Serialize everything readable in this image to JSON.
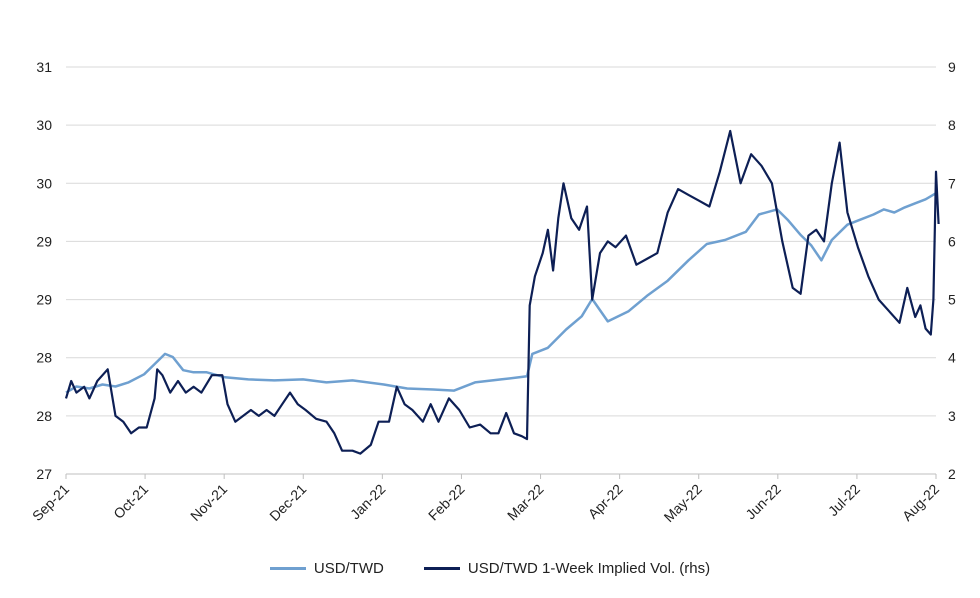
{
  "chart_data": {
    "type": "line",
    "title": "",
    "xlabel": "",
    "ylabel_left": "",
    "ylabel_right": "",
    "x_range": [
      "2021-09-01",
      "2022-08-01"
    ],
    "x_ticks": [
      "Sep-21",
      "Oct-21",
      "Nov-21",
      "Dec-21",
      "Jan-22",
      "Feb-22",
      "Mar-22",
      "Apr-22",
      "May-22",
      "Jun-22",
      "Jul-22",
      "Aug-22"
    ],
    "y_left": {
      "ticks": [
        "27",
        "28",
        "28",
        "29",
        "29",
        "30",
        "30",
        "31"
      ],
      "range": [
        27,
        31
      ]
    },
    "y_right": {
      "ticks": [
        "2",
        "3",
        "4",
        "5",
        "6",
        "7",
        "8",
        "9"
      ],
      "range": [
        2,
        9
      ]
    },
    "grid": true,
    "legend_position": "bottom",
    "series": [
      {
        "name": "USD/TWD",
        "axis": "left",
        "color": "#6fa0d0",
        "points": [
          [
            "2021-09-01",
            27.8
          ],
          [
            "2021-09-05",
            27.86
          ],
          [
            "2021-09-10",
            27.84
          ],
          [
            "2021-09-15",
            27.88
          ],
          [
            "2021-09-20",
            27.86
          ],
          [
            "2021-09-25",
            27.9
          ],
          [
            "2021-10-01",
            27.98
          ],
          [
            "2021-10-05",
            28.08
          ],
          [
            "2021-10-09",
            28.18
          ],
          [
            "2021-10-12",
            28.15
          ],
          [
            "2021-10-16",
            28.02
          ],
          [
            "2021-10-20",
            28.0
          ],
          [
            "2021-10-25",
            28.0
          ],
          [
            "2021-11-01",
            27.95
          ],
          [
            "2021-11-10",
            27.93
          ],
          [
            "2021-11-20",
            27.92
          ],
          [
            "2021-12-01",
            27.93
          ],
          [
            "2021-12-10",
            27.9
          ],
          [
            "2021-12-20",
            27.92
          ],
          [
            "2022-01-01",
            27.88
          ],
          [
            "2022-01-10",
            27.84
          ],
          [
            "2022-01-20",
            27.83
          ],
          [
            "2022-01-28",
            27.82
          ],
          [
            "2022-02-05",
            27.9
          ],
          [
            "2022-02-15",
            27.93
          ],
          [
            "2022-02-22",
            27.95
          ],
          [
            "2022-02-25",
            27.96
          ],
          [
            "2022-02-27",
            28.18
          ],
          [
            "2022-03-05",
            28.24
          ],
          [
            "2022-03-12",
            28.42
          ],
          [
            "2022-03-18",
            28.55
          ],
          [
            "2022-03-22",
            28.72
          ],
          [
            "2022-03-28",
            28.5
          ],
          [
            "2022-04-05",
            28.6
          ],
          [
            "2022-04-12",
            28.75
          ],
          [
            "2022-04-20",
            28.9
          ],
          [
            "2022-04-28",
            29.1
          ],
          [
            "2022-05-05",
            29.26
          ],
          [
            "2022-05-12",
            29.3
          ],
          [
            "2022-05-20",
            29.38
          ],
          [
            "2022-05-25",
            29.55
          ],
          [
            "2022-06-01",
            29.6
          ],
          [
            "2022-06-05",
            29.5
          ],
          [
            "2022-06-10",
            29.35
          ],
          [
            "2022-06-14",
            29.25
          ],
          [
            "2022-06-18",
            29.1
          ],
          [
            "2022-06-22",
            29.3
          ],
          [
            "2022-06-28",
            29.45
          ],
          [
            "2022-07-03",
            29.5
          ],
          [
            "2022-07-08",
            29.55
          ],
          [
            "2022-07-12",
            29.6
          ],
          [
            "2022-07-16",
            29.57
          ],
          [
            "2022-07-20",
            29.62
          ],
          [
            "2022-07-24",
            29.66
          ],
          [
            "2022-07-28",
            29.7
          ],
          [
            "2022-08-01",
            29.76
          ]
        ]
      },
      {
        "name": "USD/TWD 1-Week Implied Vol. (rhs)",
        "axis": "right",
        "color": "#0d1f55",
        "points": [
          [
            "2021-09-01",
            3.3
          ],
          [
            "2021-09-03",
            3.6
          ],
          [
            "2021-09-05",
            3.4
          ],
          [
            "2021-09-08",
            3.5
          ],
          [
            "2021-09-10",
            3.3
          ],
          [
            "2021-09-13",
            3.6
          ],
          [
            "2021-09-15",
            3.7
          ],
          [
            "2021-09-17",
            3.8
          ],
          [
            "2021-09-20",
            3.0
          ],
          [
            "2021-09-23",
            2.9
          ],
          [
            "2021-09-26",
            2.7
          ],
          [
            "2021-09-29",
            2.8
          ],
          [
            "2021-10-02",
            2.8
          ],
          [
            "2021-10-05",
            3.3
          ],
          [
            "2021-10-06",
            3.8
          ],
          [
            "2021-10-08",
            3.7
          ],
          [
            "2021-10-11",
            3.4
          ],
          [
            "2021-10-14",
            3.6
          ],
          [
            "2021-10-17",
            3.4
          ],
          [
            "2021-10-20",
            3.5
          ],
          [
            "2021-10-23",
            3.4
          ],
          [
            "2021-10-27",
            3.7
          ],
          [
            "2021-10-31",
            3.7
          ],
          [
            "2021-11-02",
            3.2
          ],
          [
            "2021-11-05",
            2.9
          ],
          [
            "2021-11-08",
            3.0
          ],
          [
            "2021-11-11",
            3.1
          ],
          [
            "2021-11-14",
            3.0
          ],
          [
            "2021-11-17",
            3.1
          ],
          [
            "2021-11-20",
            3.0
          ],
          [
            "2021-11-23",
            3.2
          ],
          [
            "2021-11-26",
            3.4
          ],
          [
            "2021-11-29",
            3.2
          ],
          [
            "2021-12-02",
            3.1
          ],
          [
            "2021-12-06",
            2.95
          ],
          [
            "2021-12-10",
            2.9
          ],
          [
            "2021-12-13",
            2.7
          ],
          [
            "2021-12-16",
            2.4
          ],
          [
            "2021-12-20",
            2.4
          ],
          [
            "2021-12-23",
            2.35
          ],
          [
            "2021-12-27",
            2.5
          ],
          [
            "2021-12-30",
            2.9
          ],
          [
            "2022-01-03",
            2.9
          ],
          [
            "2022-01-06",
            3.5
          ],
          [
            "2022-01-09",
            3.2
          ],
          [
            "2022-01-12",
            3.1
          ],
          [
            "2022-01-16",
            2.9
          ],
          [
            "2022-01-19",
            3.2
          ],
          [
            "2022-01-22",
            2.9
          ],
          [
            "2022-01-26",
            3.3
          ],
          [
            "2022-01-30",
            3.1
          ],
          [
            "2022-02-03",
            2.8
          ],
          [
            "2022-02-07",
            2.85
          ],
          [
            "2022-02-11",
            2.7
          ],
          [
            "2022-02-14",
            2.7
          ],
          [
            "2022-02-17",
            3.05
          ],
          [
            "2022-02-20",
            2.7
          ],
          [
            "2022-02-23",
            2.65
          ],
          [
            "2022-02-25",
            2.6
          ],
          [
            "2022-02-26",
            4.9
          ],
          [
            "2022-02-28",
            5.4
          ],
          [
            "2022-03-03",
            5.8
          ],
          [
            "2022-03-05",
            6.2
          ],
          [
            "2022-03-07",
            5.5
          ],
          [
            "2022-03-09",
            6.4
          ],
          [
            "2022-03-11",
            7.0
          ],
          [
            "2022-03-14",
            6.4
          ],
          [
            "2022-03-17",
            6.2
          ],
          [
            "2022-03-20",
            6.6
          ],
          [
            "2022-03-22",
            5.0
          ],
          [
            "2022-03-25",
            5.8
          ],
          [
            "2022-03-28",
            6.0
          ],
          [
            "2022-03-31",
            5.9
          ],
          [
            "2022-04-04",
            6.1
          ],
          [
            "2022-04-08",
            5.6
          ],
          [
            "2022-04-12",
            5.7
          ],
          [
            "2022-04-16",
            5.8
          ],
          [
            "2022-04-20",
            6.5
          ],
          [
            "2022-04-24",
            6.9
          ],
          [
            "2022-04-28",
            6.8
          ],
          [
            "2022-05-02",
            6.7
          ],
          [
            "2022-05-06",
            6.6
          ],
          [
            "2022-05-10",
            7.2
          ],
          [
            "2022-05-14",
            7.9
          ],
          [
            "2022-05-18",
            7.0
          ],
          [
            "2022-05-22",
            7.5
          ],
          [
            "2022-05-26",
            7.3
          ],
          [
            "2022-05-30",
            7.0
          ],
          [
            "2022-06-03",
            6.0
          ],
          [
            "2022-06-07",
            5.2
          ],
          [
            "2022-06-10",
            5.1
          ],
          [
            "2022-06-13",
            6.1
          ],
          [
            "2022-06-16",
            6.2
          ],
          [
            "2022-06-19",
            6.0
          ],
          [
            "2022-06-22",
            7.0
          ],
          [
            "2022-06-25",
            7.7
          ],
          [
            "2022-06-28",
            6.5
          ],
          [
            "2022-07-02",
            5.9
          ],
          [
            "2022-07-06",
            5.4
          ],
          [
            "2022-07-10",
            5.0
          ],
          [
            "2022-07-14",
            4.8
          ],
          [
            "2022-07-18",
            4.6
          ],
          [
            "2022-07-21",
            5.2
          ],
          [
            "2022-07-24",
            4.7
          ],
          [
            "2022-07-26",
            4.9
          ],
          [
            "2022-07-28",
            4.5
          ],
          [
            "2022-07-30",
            4.4
          ],
          [
            "2022-07-31",
            5.0
          ],
          [
            "2022-08-01",
            7.2
          ],
          [
            "2022-08-02",
            6.3
          ]
        ]
      }
    ]
  }
}
